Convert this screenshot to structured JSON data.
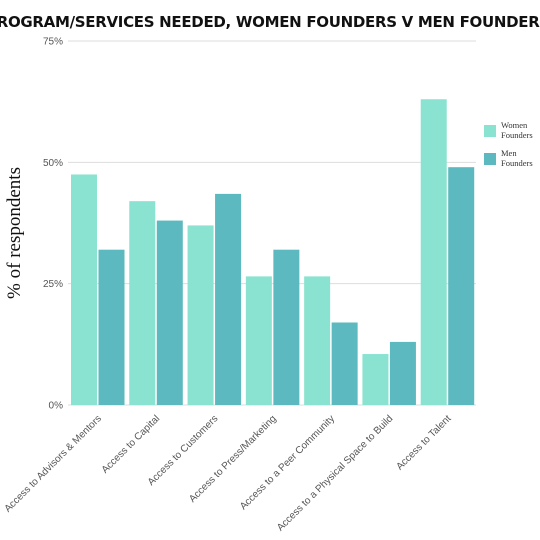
{
  "chart_data": {
    "type": "bar",
    "title": "PROGRAM/SERVICES NEEDED, WOMEN FOUNDERS V MEN FOUNDERS",
    "ylabel": "% of respondents",
    "xlabel": "",
    "ylim": [
      0,
      75
    ],
    "yticks": [
      {
        "value": 0,
        "label": "0%"
      },
      {
        "value": 25,
        "label": "25%"
      },
      {
        "value": 50,
        "label": "50%"
      },
      {
        "value": 75,
        "label": "75%"
      }
    ],
    "grid": true,
    "legend_position": "right",
    "categories": [
      "Access to Advisors & Mentors",
      "Access to Capital",
      "Access to Customers",
      "Access to Press/Marketing",
      "Access to a Peer Community",
      "Access to a Physical Space to Build",
      "Access to Talent"
    ],
    "series": [
      {
        "name": "Women Founders",
        "legend_lines": [
          "Women",
          "Founders"
        ],
        "color": "#8ae3d0",
        "values": [
          47.5,
          42,
          37,
          26.5,
          26.5,
          10.5,
          63
        ]
      },
      {
        "name": "Men Founders",
        "legend_lines": [
          "Men",
          "Founders"
        ],
        "color": "#5bb9bf",
        "values": [
          32,
          38,
          43.5,
          32,
          17,
          13,
          49
        ]
      }
    ]
  }
}
